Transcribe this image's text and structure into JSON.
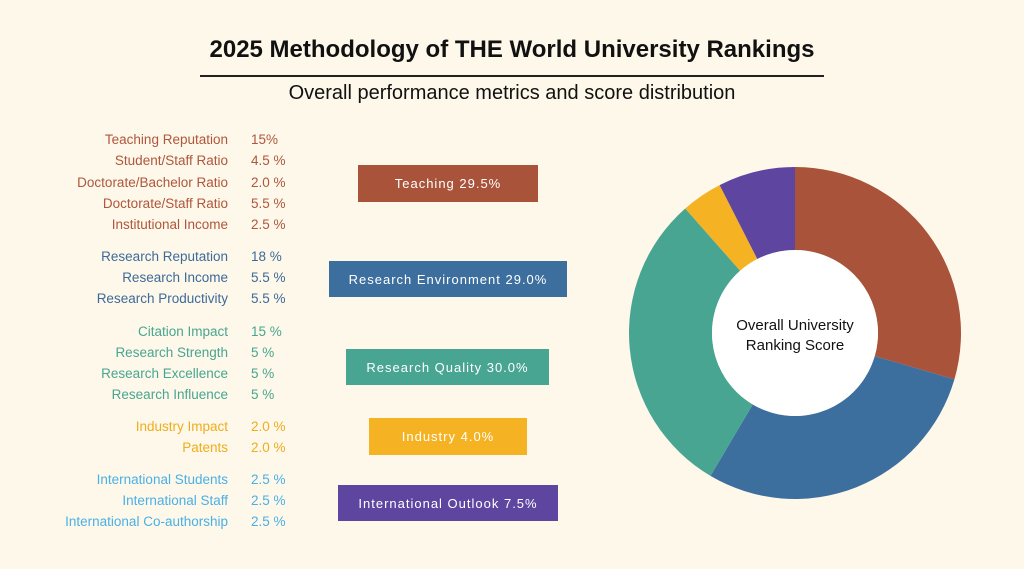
{
  "header": {
    "title": "2025 Methodology of THE World University Rankings",
    "subtitle": "Overall performance metrics and score distribution"
  },
  "metrics": [
    {
      "color": "#b0563c",
      "items": [
        {
          "name": "Teaching Reputation",
          "weight": "15%"
        },
        {
          "name": "Student/Staff Ratio",
          "weight": "4.5 %"
        },
        {
          "name": "Doctorate/Bachelor Ratio",
          "weight": "2.0 %"
        },
        {
          "name": "Doctorate/Staff Ratio",
          "weight": "5.5 %"
        },
        {
          "name": "Institutional Income",
          "weight": "2.5 %"
        }
      ]
    },
    {
      "color": "#3d6a9a",
      "items": [
        {
          "name": "Research Reputation",
          "weight": "18 %"
        },
        {
          "name": "Research Income",
          "weight": "5.5 %"
        },
        {
          "name": "Research Productivity",
          "weight": "5.5 %"
        }
      ]
    },
    {
      "color": "#48a591",
      "items": [
        {
          "name": "Citation Impact",
          "weight": "15 %"
        },
        {
          "name": "Research Strength",
          "weight": "5 %"
        },
        {
          "name": "Research Excellence",
          "weight": "5 %"
        },
        {
          "name": "Research Influence",
          "weight": "5 %"
        }
      ]
    },
    {
      "color": "#f0ad1c",
      "items": [
        {
          "name": "Industry Impact",
          "weight": "2.0 %"
        },
        {
          "name": "Patents",
          "weight": "2.0 %"
        }
      ]
    },
    {
      "color": "#4ab0e6",
      "items": [
        {
          "name": "International Students",
          "weight": "2.5 %"
        },
        {
          "name": "International Staff",
          "weight": "2.5 %"
        },
        {
          "name": "International Co-authorship",
          "weight": "2.5 %"
        }
      ]
    }
  ],
  "chart_data": {
    "type": "pie",
    "center_label": "Overall University Ranking Score",
    "categories": [
      "Teaching 29.5%",
      "Research Environment 29.0%",
      "Research Quality 30.0%",
      "Industry 4.0%",
      "International Outlook 7.5%"
    ],
    "values": [
      29.5,
      29.0,
      30.0,
      4.0,
      7.5
    ],
    "colors": [
      "#a9533a",
      "#3c6e9e",
      "#48a591",
      "#f5b324",
      "#5e45a0"
    ]
  }
}
